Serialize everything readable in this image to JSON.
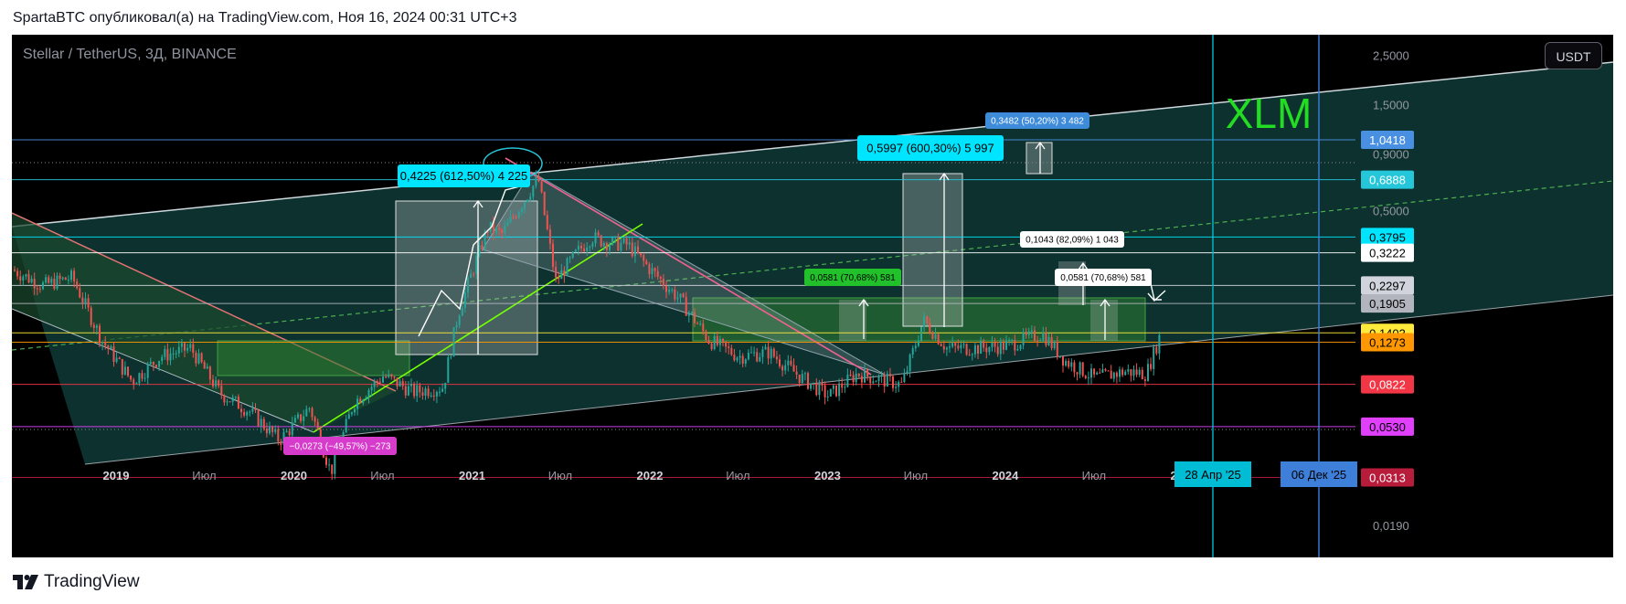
{
  "header": {
    "publish_text": "SpartaBTC опубликовал(а) на TradingView.com, Ноя 16, 2024 00:31 UTC+3"
  },
  "chart_header": {
    "symbol": "Stellar / TetherUS, 3Д, BINANCE",
    "currency_button": "USDT"
  },
  "footer": {
    "brand": "TradingView"
  },
  "chart_data": {
    "type": "candlestick",
    "title": "XLM",
    "symbol": "XLMUSDT",
    "timeframe": "3D",
    "exchange": "BINANCE",
    "y_scale": "log",
    "ylim": [
      0.015,
      3.1
    ],
    "x_start": "2018-06-01",
    "x_end": "2025-12-20",
    "x_ticks": [
      {
        "label": "2019",
        "date": "2019-01-01",
        "bold": true
      },
      {
        "label": "Июл",
        "date": "2019-07-01",
        "bold": false
      },
      {
        "label": "2020",
        "date": "2020-01-01",
        "bold": true
      },
      {
        "label": "Июл",
        "date": "2020-07-01",
        "bold": false
      },
      {
        "label": "2021",
        "date": "2021-01-01",
        "bold": true
      },
      {
        "label": "Июл",
        "date": "2021-07-01",
        "bold": false
      },
      {
        "label": "2022",
        "date": "2022-01-01",
        "bold": true
      },
      {
        "label": "Июл",
        "date": "2022-07-01",
        "bold": false
      },
      {
        "label": "2023",
        "date": "2023-01-01",
        "bold": true
      },
      {
        "label": "Июл",
        "date": "2023-07-01",
        "bold": false
      },
      {
        "label": "2024",
        "date": "2024-01-01",
        "bold": true
      },
      {
        "label": "Июл",
        "date": "2024-07-01",
        "bold": false
      },
      {
        "label": "2025",
        "date": "2025-01-01",
        "bold": true
      }
    ],
    "y_ticks": [
      {
        "label": "2,5000",
        "value": 2.5
      },
      {
        "label": "1,5000",
        "value": 1.5
      },
      {
        "label": "0,9000",
        "value": 0.9
      },
      {
        "label": "0,5000",
        "value": 0.5
      },
      {
        "label": "0,0190",
        "value": 0.019
      }
    ],
    "price_path": [
      {
        "date": "2018-06-01",
        "price": 0.27
      },
      {
        "date": "2018-08-01",
        "price": 0.23
      },
      {
        "date": "2018-10-01",
        "price": 0.25
      },
      {
        "date": "2018-12-01",
        "price": 0.13
      },
      {
        "date": "2019-02-01",
        "price": 0.085
      },
      {
        "date": "2019-04-01",
        "price": 0.11
      },
      {
        "date": "2019-06-01",
        "price": 0.12
      },
      {
        "date": "2019-08-01",
        "price": 0.075
      },
      {
        "date": "2019-10-01",
        "price": 0.062
      },
      {
        "date": "2019-12-01",
        "price": 0.046
      },
      {
        "date": "2020-02-01",
        "price": 0.065
      },
      {
        "date": "2020-03-15",
        "price": 0.033
      },
      {
        "date": "2020-05-01",
        "price": 0.068
      },
      {
        "date": "2020-07-01",
        "price": 0.09
      },
      {
        "date": "2020-09-01",
        "price": 0.076
      },
      {
        "date": "2020-11-01",
        "price": 0.08
      },
      {
        "date": "2020-12-01",
        "price": 0.17
      },
      {
        "date": "2021-01-01",
        "price": 0.27
      },
      {
        "date": "2021-02-01",
        "price": 0.42
      },
      {
        "date": "2021-03-01",
        "price": 0.39
      },
      {
        "date": "2021-05-15",
        "price": 0.7
      },
      {
        "date": "2021-06-20",
        "price": 0.24
      },
      {
        "date": "2021-08-01",
        "price": 0.32
      },
      {
        "date": "2021-09-01",
        "price": 0.38
      },
      {
        "date": "2021-10-01",
        "price": 0.36
      },
      {
        "date": "2021-11-15",
        "price": 0.35
      },
      {
        "date": "2022-01-01",
        "price": 0.27
      },
      {
        "date": "2022-03-01",
        "price": 0.2
      },
      {
        "date": "2022-05-01",
        "price": 0.13
      },
      {
        "date": "2022-07-01",
        "price": 0.11
      },
      {
        "date": "2022-09-01",
        "price": 0.115
      },
      {
        "date": "2022-11-01",
        "price": 0.09
      },
      {
        "date": "2023-01-01",
        "price": 0.073
      },
      {
        "date": "2023-03-01",
        "price": 0.092
      },
      {
        "date": "2023-06-01",
        "price": 0.082
      },
      {
        "date": "2023-07-15",
        "price": 0.16
      },
      {
        "date": "2023-09-01",
        "price": 0.12
      },
      {
        "date": "2023-11-01",
        "price": 0.12
      },
      {
        "date": "2024-01-01",
        "price": 0.123
      },
      {
        "date": "2024-03-15",
        "price": 0.14
      },
      {
        "date": "2024-05-01",
        "price": 0.105
      },
      {
        "date": "2024-07-01",
        "price": 0.088
      },
      {
        "date": "2024-09-01",
        "price": 0.094
      },
      {
        "date": "2024-10-15",
        "price": 0.092
      },
      {
        "date": "2024-11-16",
        "price": 0.145
      }
    ],
    "price_levels": [
      {
        "value": 1.0418,
        "label": "1,0418",
        "color": "#4a90e2",
        "label_text_color": "#ffffff"
      },
      {
        "value": 0.6888,
        "label": "0,6888",
        "color": "#26c6da",
        "label_text_color": "#ffffff"
      },
      {
        "value": 0.3795,
        "label": "0,3795",
        "color": "#00e5ff",
        "label_text_color": "#000000"
      },
      {
        "value": 0.3222,
        "label": "0,3222",
        "color": "#ffffff",
        "label_text_color": "#000000"
      },
      {
        "value": 0.2297,
        "label": "0,2297",
        "color": "#d1d4dc",
        "label_text_color": "#000000"
      },
      {
        "value": 0.1905,
        "label": "0,1905",
        "color": "#b2b5be",
        "label_text_color": "#000000"
      },
      {
        "value": 0.1403,
        "label": "0,1403",
        "color": "#ffeb3b",
        "label_text_color": "#000000"
      },
      {
        "value": 0.1273,
        "label": "0,1273",
        "color": "#ff9800",
        "label_text_color": "#000000"
      },
      {
        "value": 0.0822,
        "label": "0,0822",
        "color": "#f23645",
        "label_text_color": "#ffffff"
      },
      {
        "value": 0.053,
        "label": "0,0530",
        "color": "#e040fb",
        "label_text_color": "#000000"
      },
      {
        "value": 0.0313,
        "label": "0,0313",
        "color": "#b71c3a",
        "label_text_color": "#ffffff"
      }
    ],
    "time_markers": [
      {
        "label": "28 Апр '25",
        "date": "2025-04-28",
        "color": "#00bcd4"
      },
      {
        "label": "06 Дек '25",
        "date": "2025-12-06",
        "color": "#3d7fd9"
      }
    ],
    "measure_labels": [
      {
        "text": "0,4225 (612,50%) 4 225",
        "style": "cyan-large"
      },
      {
        "text": "0,5997 (600,30%) 5 997",
        "style": "cyan-large"
      },
      {
        "text": "0,3482 (50,20%) 3 482",
        "style": "blue-small"
      },
      {
        "text": "0,1043 (82,09%) 1 043",
        "style": "white-small"
      },
      {
        "text": "0,0581 (70,68%) 581",
        "style": "green-small"
      },
      {
        "text": "0,0581 (70,68%) 581",
        "style": "white-small"
      },
      {
        "text": "−0,0273 (−49,57%) −273",
        "style": "magenta-small"
      }
    ],
    "colors": {
      "background": "#000000",
      "channel_fill": "#0e3a37",
      "up_candle": "#26a69a",
      "down_candle": "#ef5350",
      "ticker_text": "#22dd22"
    },
    "grid": false
  }
}
